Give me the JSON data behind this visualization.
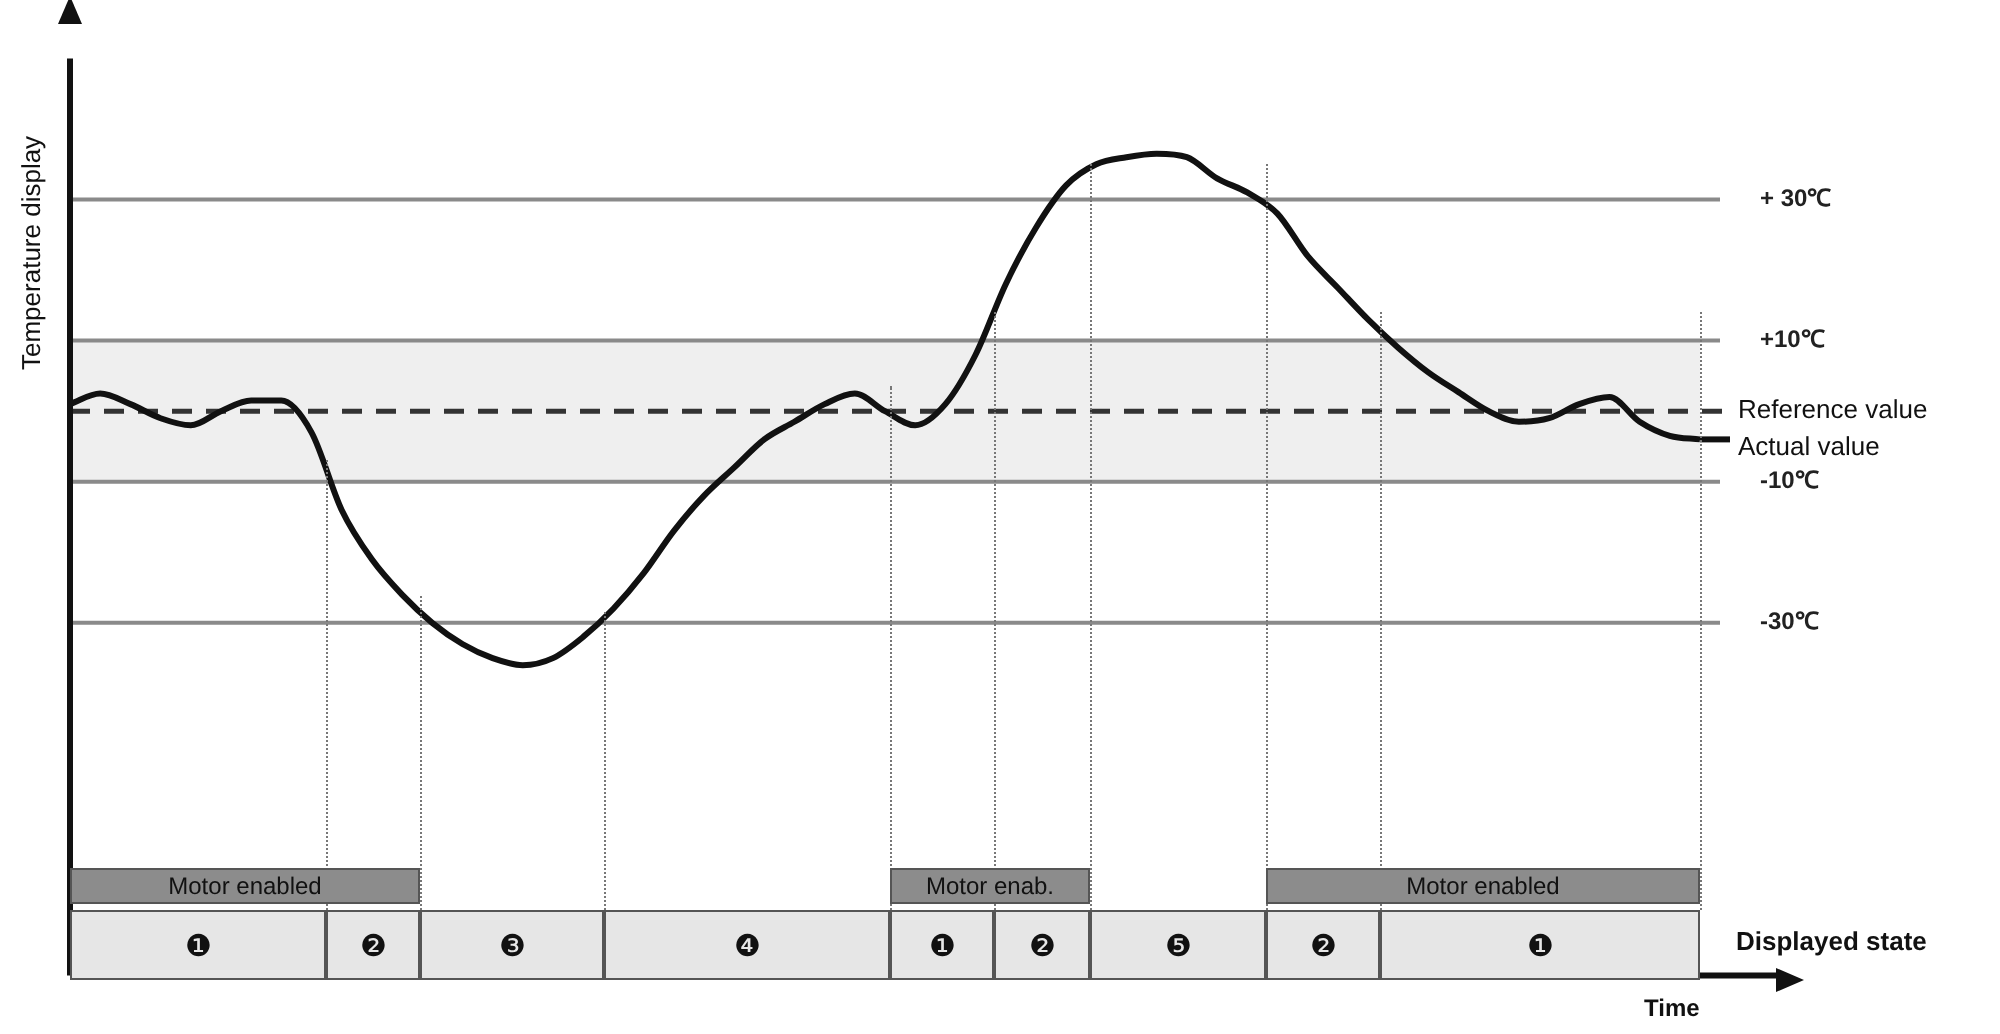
{
  "chart_data": {
    "type": "line",
    "ylabel": "Temperature display",
    "xlabel": "Time",
    "categories": [
      null,
      null,
      null,
      null,
      null,
      null,
      null,
      null,
      null,
      null,
      null,
      null,
      null,
      null,
      null,
      null,
      null,
      null,
      null,
      null,
      null,
      null,
      null,
      null,
      null,
      null,
      null,
      null,
      null,
      null,
      null,
      null,
      null,
      null,
      null,
      null,
      null,
      null,
      null,
      null,
      null,
      null,
      null,
      null,
      null,
      null,
      null,
      null,
      null,
      null,
      null,
      null,
      null,
      null,
      null
    ],
    "series": [
      {
        "name": "Actual value",
        "color": "#111111",
        "values": [
          1,
          2.5,
          1,
          -1,
          -2,
          0,
          1.5,
          1.5,
          -3,
          -14,
          -21,
          -26,
          -30,
          -33,
          -35,
          -36,
          -35,
          -32,
          -28,
          -23,
          -17,
          -12,
          -8,
          -4,
          -1.5,
          1,
          2.5,
          0,
          -2,
          1,
          8,
          18,
          26,
          32,
          35,
          36,
          36.5,
          36,
          33,
          31,
          28,
          22,
          17.5,
          13,
          9,
          5.5,
          2.7,
          0,
          -1.5,
          -1,
          1,
          2,
          -1.5,
          -3.5,
          -4
        ]
      }
    ],
    "ylim": [
      -80,
      50
    ],
    "yticks": [
      {
        "value": -30,
        "label": "-30℃"
      },
      {
        "value": -10,
        "label": "-10℃"
      },
      {
        "value": 10,
        "label": "+10℃"
      },
      {
        "value": 30,
        "label": "+ 30℃"
      }
    ],
    "grid": "y",
    "legend": "right",
    "marker": "none",
    "line_style": "solid",
    "ref_lines": [
      {
        "axis": "y",
        "value": 0,
        "label": "Reference value",
        "color": "#333333",
        "line_style": "dashed"
      }
    ],
    "bands": [
      {
        "axis": "y",
        "from": -10,
        "to": 10,
        "color": "#efefef"
      }
    ],
    "annotations": [
      "Motor enabled",
      "Motor enab.",
      "Motor enabled",
      "❶",
      "❷",
      "❸",
      "❹",
      "❶",
      "❷",
      "❺",
      "❷",
      "❶",
      "Displayed state"
    ]
  }
}
